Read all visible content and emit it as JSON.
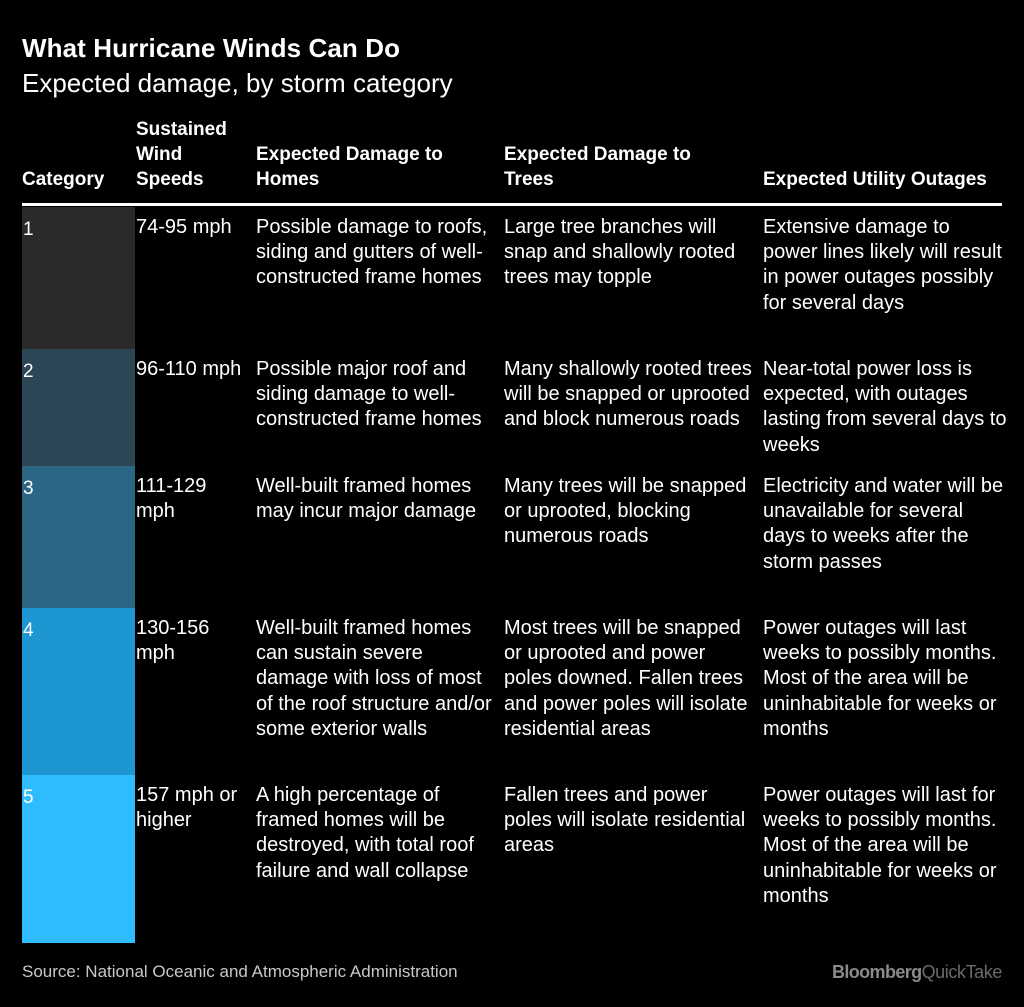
{
  "title": "What Hurricane Winds Can Do",
  "subtitle": "Expected damage, by storm category",
  "headers": {
    "category": "Category",
    "wind": "Sustained Wind Speeds",
    "homes": "Expected Damage to Homes",
    "trees": "Expected Damage to Trees",
    "utility": "Expected Utility Outages"
  },
  "rows": [
    {
      "category": "1",
      "color": "#2a2a2a",
      "wind": "74-95 mph",
      "homes": "Possible damage to roofs, siding and gutters of well-constructed frame homes",
      "trees": "Large tree branches will snap and shallowly rooted trees may topple",
      "utility": "Extensive damage to power lines likely will result in power outages possibly for several days"
    },
    {
      "category": "2",
      "color": "#2d4655",
      "wind": "96-110 mph",
      "homes": "Possible major roof and siding damage to well-constructed frame homes",
      "trees": "Many shallowly rooted trees will be snapped or uprooted and block numerous roads",
      "utility": "Near-total power loss is expected, with outages lasting from several days to weeks"
    },
    {
      "category": "3",
      "color": "#2b6685",
      "wind": "111-129 mph",
      "homes": "Well-built framed homes may incur major damage",
      "trees": "Many trees will be snapped or uprooted, blocking numerous roads",
      "utility": "Electricity and water will be unavailable for several days to weeks after the storm passes"
    },
    {
      "category": "4",
      "color": "#1e96d2",
      "wind": "130-156 mph",
      "homes": "Well-built framed homes can sustain severe damage with loss of most of the roof structure and/or some exterior walls",
      "trees": "Most trees will be snapped or uprooted and power poles downed. Fallen trees and power poles will isolate residential areas",
      "utility": "Power outages will last weeks to possibly months. Most of the area will be uninhabitable for weeks or months"
    },
    {
      "category": "5",
      "color": "#2fbcff",
      "wind": "157 mph or higher",
      "homes": "A high percentage of framed homes will be destroyed, with total roof failure and wall collapse",
      "trees": "Fallen trees and power poles will isolate residential areas",
      "utility": "Power outages will last for weeks to possibly months. Most of the area will be uninhabitable for weeks or months"
    }
  ],
  "source": "Source: National Oceanic and Atmospheric Administration",
  "brand": {
    "part1": "Bloomberg",
    "part2": "QuickTake"
  }
}
